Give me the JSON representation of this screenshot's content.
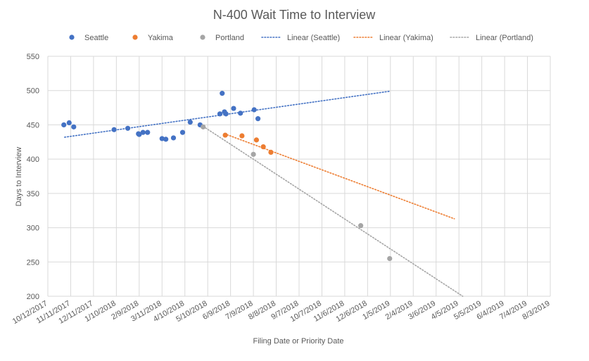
{
  "chart_data": {
    "type": "scatter",
    "title": "N-400 Wait Time to Interview",
    "xlabel": "Filing Date or Priority Date",
    "ylabel": "Days to Interview",
    "ylim": [
      200,
      550
    ],
    "y_ticks": [
      200,
      250,
      300,
      350,
      400,
      450,
      500,
      550
    ],
    "xlim": [
      "2017-10-12",
      "2019-08-03"
    ],
    "x_ticks": [
      "10/12/2017",
      "11/11/2017",
      "12/11/2017",
      "1/10/2018",
      "2/9/2018",
      "3/11/2018",
      "4/10/2018",
      "5/10/2018",
      "6/9/2018",
      "7/9/2018",
      "8/8/2018",
      "9/7/2018",
      "10/7/2018",
      "11/6/2018",
      "12/6/2018",
      "1/5/2019",
      "2/4/2019",
      "3/6/2019",
      "4/5/2019",
      "5/5/2019",
      "6/4/2019",
      "7/4/2019",
      "8/3/2019"
    ],
    "grid": {
      "horizontal": true,
      "vertical": true
    },
    "legend_position": "top",
    "series": [
      {
        "name": "Seattle",
        "color": "#4472C4",
        "points": [
          {
            "x": "2017-11-02",
            "y": 450
          },
          {
            "x": "2017-11-09",
            "y": 453
          },
          {
            "x": "2017-11-15",
            "y": 447
          },
          {
            "x": "2018-01-07",
            "y": 443
          },
          {
            "x": "2018-01-25",
            "y": 445
          },
          {
            "x": "2018-02-08",
            "y": 437
          },
          {
            "x": "2018-02-09",
            "y": 436
          },
          {
            "x": "2018-02-14",
            "y": 439
          },
          {
            "x": "2018-02-20",
            "y": 439
          },
          {
            "x": "2018-03-11",
            "y": 430
          },
          {
            "x": "2018-03-16",
            "y": 429
          },
          {
            "x": "2018-03-26",
            "y": 431
          },
          {
            "x": "2018-04-07",
            "y": 439
          },
          {
            "x": "2018-04-17",
            "y": 454
          },
          {
            "x": "2018-04-30",
            "y": 450
          },
          {
            "x": "2018-05-26",
            "y": 466
          },
          {
            "x": "2018-05-29",
            "y": 496
          },
          {
            "x": "2018-06-01",
            "y": 469
          },
          {
            "x": "2018-06-03",
            "y": 466
          },
          {
            "x": "2018-06-13",
            "y": 474
          },
          {
            "x": "2018-06-22",
            "y": 467
          },
          {
            "x": "2018-07-10",
            "y": 472
          },
          {
            "x": "2018-07-15",
            "y": 459
          }
        ],
        "trendline": {
          "name": "Linear (Seattle)",
          "from": {
            "x": "2017-11-03",
            "y": 432
          },
          "to": {
            "x": "2019-01-04",
            "y": 499
          },
          "color": "#4472C4",
          "style": "dotted"
        }
      },
      {
        "name": "Yakima",
        "color": "#ED7D31",
        "points": [
          {
            "x": "2018-06-02",
            "y": 435
          },
          {
            "x": "2018-06-24",
            "y": 434
          },
          {
            "x": "2018-07-13",
            "y": 428
          },
          {
            "x": "2018-07-22",
            "y": 418
          },
          {
            "x": "2018-08-01",
            "y": 410
          }
        ],
        "trendline": {
          "name": "Linear (Yakima)",
          "from": {
            "x": "2018-06-01",
            "y": 437
          },
          "to": {
            "x": "2019-03-30",
            "y": 313
          },
          "color": "#ED7D31",
          "style": "dotted"
        }
      },
      {
        "name": "Portland",
        "color": "#A5A5A5",
        "points": [
          {
            "x": "2018-05-04",
            "y": 447
          },
          {
            "x": "2018-07-09",
            "y": 407
          },
          {
            "x": "2018-11-27",
            "y": 303
          },
          {
            "x": "2019-01-04",
            "y": 255
          }
        ],
        "trendline": {
          "name": "Linear (Portland)",
          "from": {
            "x": "2018-05-01",
            "y": 450
          },
          "to": {
            "x": "2019-04-10",
            "y": 200
          },
          "color": "#A5A5A5",
          "style": "dotted"
        }
      }
    ]
  }
}
